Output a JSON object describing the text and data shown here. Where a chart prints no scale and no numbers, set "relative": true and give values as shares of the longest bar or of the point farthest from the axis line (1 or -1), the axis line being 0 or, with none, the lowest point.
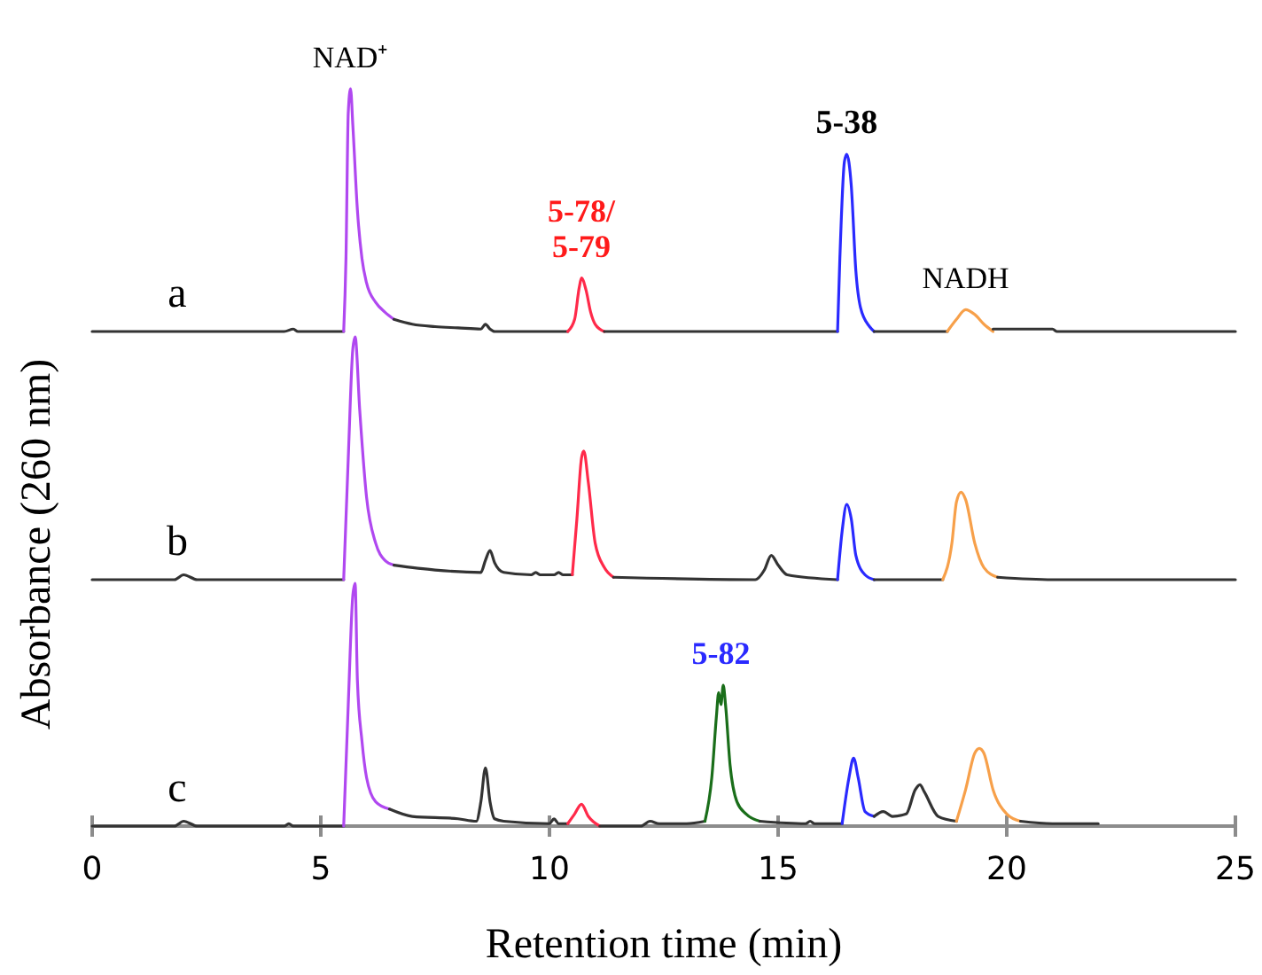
{
  "chart_data": [
    {
      "type": "line",
      "relative": true,
      "xlim": [
        0,
        25
      ],
      "xticks": [
        0,
        5,
        10,
        15,
        20,
        25
      ],
      "tick_labels": false,
      "annotations": [
        "a",
        {
          "text": "NAD⁺",
          "x": 5.65,
          "y": 1
        },
        {
          "text": "5-78/\n5-79",
          "x": 10.7,
          "y": 0.22
        },
        {
          "text": "5-38",
          "x": 16.5,
          "y": 0.73
        },
        {
          "text": "NADH",
          "x": 19.1,
          "y": 0.09
        }
      ],
      "series": [
        {
          "color": "#333333",
          "x": [
            0,
            4.2,
            4.4,
            4.5,
            5.5
          ],
          "values": [
            0,
            0,
            0.01,
            0,
            0
          ]
        },
        {
          "color": "#b048f0",
          "x": [
            5.5,
            5.55,
            5.6,
            5.65,
            5.7,
            5.8,
            5.9,
            6.0,
            6.2,
            6.4,
            6.6
          ],
          "values": [
            0,
            0.3,
            0.9,
            1,
            0.85,
            0.5,
            0.3,
            0.2,
            0.12,
            0.08,
            0.05
          ]
        },
        {
          "color": "#333333",
          "x": [
            6.6,
            7.0,
            7.5,
            8.0,
            8.5,
            8.6,
            8.7,
            8.8,
            9,
            10.4
          ],
          "values": [
            0.05,
            0.03,
            0.02,
            0.015,
            0.01,
            0.03,
            0.01,
            0,
            0,
            0
          ]
        },
        {
          "color": "#ff2a4a",
          "x": [
            10.4,
            10.55,
            10.65,
            10.7,
            10.8,
            10.9,
            11.0,
            11.2
          ],
          "values": [
            0,
            0.05,
            0.18,
            0.22,
            0.17,
            0.08,
            0.03,
            0
          ]
        },
        {
          "color": "#333333",
          "x": [
            11.2,
            16.3
          ],
          "values": [
            0,
            0
          ]
        },
        {
          "color": "#2a2aff",
          "x": [
            16.3,
            16.35,
            16.45,
            16.5,
            16.6,
            16.7,
            16.8,
            17.0,
            17.1
          ],
          "values": [
            0,
            0.3,
            0.7,
            0.73,
            0.6,
            0.25,
            0.1,
            0.02,
            0
          ]
        },
        {
          "color": "#333333",
          "x": [
            17.1,
            18.7
          ],
          "values": [
            0,
            0
          ]
        },
        {
          "color": "#f7a04a",
          "x": [
            18.7,
            18.9,
            19.1,
            19.3,
            19.5,
            19.7
          ],
          "values": [
            0,
            0.05,
            0.09,
            0.07,
            0.03,
            0
          ]
        },
        {
          "color": "#333333",
          "x": [
            19.7,
            21.0,
            21.1,
            25
          ],
          "values": [
            0.01,
            0.01,
            0,
            0
          ]
        }
      ]
    },
    {
      "type": "line",
      "relative": true,
      "xlim": [
        0,
        25
      ],
      "xticks": [
        0,
        5,
        10,
        15,
        20,
        25
      ],
      "tick_labels": false,
      "ylabel": "Absorbance (260 nm)",
      "annotations": [
        "b"
      ],
      "series": [
        {
          "color": "#333333",
          "x": [
            0,
            1.8,
            2.0,
            2.3,
            5.5
          ],
          "values": [
            0,
            0,
            0.02,
            0,
            0
          ]
        },
        {
          "color": "#b048f0",
          "x": [
            5.5,
            5.6,
            5.7,
            5.75,
            5.85,
            6.0,
            6.2,
            6.4,
            6.6
          ],
          "values": [
            0,
            0.5,
            0.95,
            1,
            0.7,
            0.34,
            0.15,
            0.08,
            0.06
          ]
        },
        {
          "color": "#333333",
          "x": [
            6.6,
            7.5,
            8.5,
            8.6,
            8.7,
            8.8,
            9.0,
            9.6,
            9.7,
            9.8,
            10.1,
            10.2,
            10.3,
            10.5
          ],
          "values": [
            0.06,
            0.04,
            0.03,
            0.08,
            0.12,
            0.07,
            0.03,
            0.02,
            0.03,
            0.02,
            0.02,
            0.03,
            0.02,
            0.02
          ]
        },
        {
          "color": "#ff2a4a",
          "x": [
            10.5,
            10.6,
            10.7,
            10.75,
            10.85,
            11.0,
            11.2,
            11.4
          ],
          "values": [
            0.02,
            0.25,
            0.5,
            0.53,
            0.4,
            0.15,
            0.05,
            0.01
          ]
        },
        {
          "color": "#333333",
          "x": [
            11.4,
            14.5,
            14.7,
            14.85,
            15.0,
            15.2,
            16.3
          ],
          "values": [
            0.01,
            0,
            0.04,
            0.1,
            0.06,
            0.02,
            0
          ]
        },
        {
          "color": "#2a2aff",
          "x": [
            16.3,
            16.4,
            16.5,
            16.6,
            16.7,
            16.9,
            17.1
          ],
          "values": [
            0,
            0.2,
            0.31,
            0.25,
            0.1,
            0.02,
            0
          ]
        },
        {
          "color": "#333333",
          "x": [
            17.1,
            18.6
          ],
          "values": [
            0,
            0
          ]
        },
        {
          "color": "#f7a04a",
          "x": [
            18.6,
            18.8,
            18.9,
            19.0,
            19.1,
            19.3,
            19.5,
            19.8
          ],
          "values": [
            0,
            0.15,
            0.32,
            0.36,
            0.33,
            0.15,
            0.05,
            0.01
          ]
        },
        {
          "color": "#333333",
          "x": [
            19.8,
            21.0,
            25
          ],
          "values": [
            0.01,
            0,
            0
          ]
        }
      ]
    },
    {
      "type": "line",
      "relative": true,
      "xlim": [
        0,
        25
      ],
      "xticks": [
        0,
        5,
        10,
        15,
        20,
        25
      ],
      "tick_labels": "x",
      "xlabel": "Retention time (min)",
      "annotations": [
        "c",
        {
          "text": "5-82",
          "x": 13.75,
          "y": 0.58
        }
      ],
      "series": [
        {
          "color": "#333333",
          "x": [
            0,
            1.8,
            2.0,
            2.3,
            4.2,
            4.3,
            4.4,
            5.5
          ],
          "values": [
            0,
            0,
            0.02,
            0,
            0,
            0.01,
            0,
            0
          ]
        },
        {
          "color": "#b048f0",
          "x": [
            5.5,
            5.6,
            5.7,
            5.75,
            5.8,
            5.9,
            6.0,
            6.2,
            6.5
          ],
          "values": [
            0,
            0.5,
            0.95,
            1,
            0.6,
            0.35,
            0.2,
            0.1,
            0.07
          ]
        },
        {
          "color": "#333333",
          "x": [
            6.5,
            7.0,
            8.0,
            8.4,
            8.5,
            8.6,
            8.7,
            8.8,
            9.0,
            10.0,
            10.1,
            10.2,
            10.4
          ],
          "values": [
            0.07,
            0.04,
            0.03,
            0.02,
            0.1,
            0.24,
            0.1,
            0.03,
            0.02,
            0.01,
            0.03,
            0.01,
            0.01
          ]
        },
        {
          "color": "#ff2a4a",
          "x": [
            10.4,
            10.55,
            10.7,
            10.85,
            11.1
          ],
          "values": [
            0.01,
            0.05,
            0.09,
            0.04,
            0
          ]
        },
        {
          "color": "#333333",
          "x": [
            11.1,
            12.0,
            12.2,
            12.4,
            13.0,
            13.4
          ],
          "values": [
            0,
            0,
            0.02,
            0.01,
            0.01,
            0.02
          ]
        },
        {
          "color": "#1a6e1a",
          "x": [
            13.4,
            13.55,
            13.65,
            13.7,
            13.75,
            13.8,
            13.85,
            13.95,
            14.1,
            14.3,
            14.6
          ],
          "values": [
            0.02,
            0.2,
            0.45,
            0.55,
            0.5,
            0.58,
            0.5,
            0.25,
            0.1,
            0.05,
            0.02
          ]
        },
        {
          "color": "#333333",
          "x": [
            14.6,
            15.6,
            15.7,
            15.8,
            16.4
          ],
          "values": [
            0.02,
            0.01,
            0.02,
            0.01,
            0.01
          ]
        },
        {
          "color": "#2a2aff",
          "x": [
            16.4,
            16.55,
            16.65,
            16.75,
            16.9,
            17.1
          ],
          "values": [
            0.01,
            0.2,
            0.28,
            0.2,
            0.06,
            0.04
          ]
        },
        {
          "color": "#333333",
          "x": [
            17.1,
            17.3,
            17.5,
            17.8,
            18.0,
            18.1,
            18.2,
            18.5,
            18.9
          ],
          "values": [
            0.04,
            0.06,
            0.04,
            0.05,
            0.15,
            0.17,
            0.14,
            0.04,
            0.02
          ]
        },
        {
          "color": "#f7a04a",
          "x": [
            18.9,
            19.1,
            19.3,
            19.4,
            19.5,
            19.7,
            20.0,
            20.3
          ],
          "values": [
            0.02,
            0.15,
            0.3,
            0.32,
            0.3,
            0.15,
            0.05,
            0.02
          ]
        },
        {
          "color": "#333333",
          "x": [
            20.3,
            21.0,
            22.0
          ],
          "values": [
            0.02,
            0.01,
            0.01
          ]
        }
      ]
    }
  ]
}
